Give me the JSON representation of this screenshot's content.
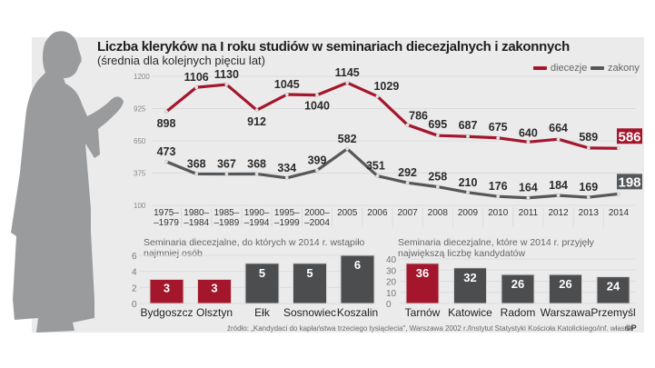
{
  "title": "Liczba kleryków na I roku studiów w seminariach diecezjalnych i zakonnych",
  "subtitle": "(średnia dla kolejnych pięciu lat)",
  "colors": {
    "diecezje": "#a4162c",
    "zakony": "#55585a",
    "panel": "#ebebec",
    "grid": "#dcdcdc"
  },
  "source": "źródło: „Kandydaci do kapłaństwa trzeciego tysiąclecia\", Warszawa 2002 r./Instytut Statystyki Kościoła Katolickiego/inf. własne",
  "copyright": "©P",
  "chart_data": [
    {
      "type": "line",
      "title": "Liczba kleryków na I roku studiów w seminariach diecezjalnych i zakonnych",
      "subtitle": "(średnia dla kolejnych pięciu lat)",
      "categories": [
        "1975–\n–1979",
        "1980–\n–1984",
        "1985–\n–1989",
        "1990–\n–1994",
        "1995–\n–1999",
        "2000–\n–2004",
        "2005",
        "2006",
        "2007",
        "2008",
        "2009",
        "2010",
        "2011",
        "2012",
        "2013",
        "2014"
      ],
      "x_labels": [
        [
          "1975–",
          "–1979"
        ],
        [
          "1980–",
          "–1984"
        ],
        [
          "1985–",
          "–1989"
        ],
        [
          "1990–",
          "–1994"
        ],
        [
          "1995–",
          "–1999"
        ],
        [
          "2000–",
          "–2004"
        ],
        [
          "2005"
        ],
        [
          "2006"
        ],
        [
          "2007"
        ],
        [
          "2008"
        ],
        [
          "2009"
        ],
        [
          "2010"
        ],
        [
          "2011"
        ],
        [
          "2012"
        ],
        [
          "2013"
        ],
        [
          "2014"
        ]
      ],
      "series": [
        {
          "name": "diecezje",
          "color": "#a4162c",
          "values": [
            898,
            1106,
            1130,
            912,
            1045,
            1040,
            1145,
            1029,
            786,
            695,
            687,
            675,
            640,
            664,
            589,
            586
          ]
        },
        {
          "name": "zakony",
          "color": "#55585a",
          "values": [
            473,
            368,
            367,
            368,
            334,
            399,
            582,
            351,
            292,
            258,
            210,
            176,
            164,
            184,
            169,
            198
          ]
        }
      ],
      "yticks": [
        1200,
        925,
        650,
        375,
        100
      ],
      "ylim": [
        100,
        1200
      ],
      "grid": true,
      "legend": "top-right",
      "highlight_last": true
    },
    {
      "type": "bar",
      "title": "Seminaria diecezjalne, do których w 2014 r. wstąpiło najmniej osób",
      "categories": [
        "Bydgoszcz",
        "Olsztyn",
        "Ełk",
        "Sosnowiec",
        "Koszalin"
      ],
      "values": [
        3,
        3,
        5,
        5,
        6
      ],
      "colors": [
        "#a4162c",
        "#a4162c",
        "#4b4d4f",
        "#4b4d4f",
        "#4b4d4f"
      ],
      "yticks": [
        0,
        2,
        4,
        6
      ],
      "ylim": [
        0,
        6
      ]
    },
    {
      "type": "bar",
      "title": "Seminaria diecezjalne, które w 2014 r. przyjęły największą liczbę kandydatów",
      "categories": [
        "Tarnów",
        "Katowice",
        "Radom",
        "Warszawa",
        "Przemyśl"
      ],
      "values": [
        36,
        32,
        26,
        26,
        24
      ],
      "colors": [
        "#a4162c",
        "#4b4d4f",
        "#4b4d4f",
        "#4b4d4f",
        "#4b4d4f"
      ],
      "yticks": [
        0,
        10,
        20,
        30,
        40
      ],
      "ylim": [
        0,
        40
      ]
    }
  ]
}
